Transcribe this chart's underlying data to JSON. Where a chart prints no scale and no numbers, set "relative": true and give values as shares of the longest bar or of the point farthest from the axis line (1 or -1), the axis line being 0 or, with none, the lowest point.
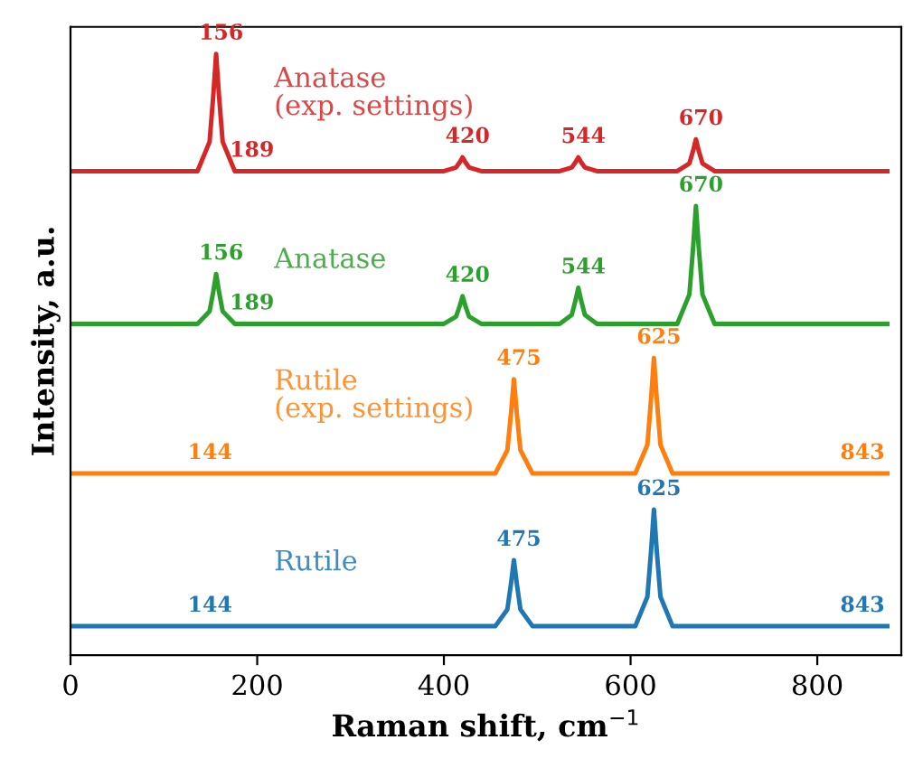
{
  "chart_data": {
    "type": "line",
    "relative": true,
    "xlabel": "Raman shift, cm$^{−1}$",
    "ylabel": "Intensity, a.u.",
    "xlim": [
      0,
      890
    ],
    "xticks": [
      0,
      200,
      400,
      600,
      800
    ],
    "grid": false,
    "legend": false,
    "marker": "none",
    "line_style": "solid",
    "series": [
      {
        "name": "Rutile",
        "color": "#1f77b4",
        "x": [
          0,
          455,
          468,
          472,
          475,
          478,
          482,
          495,
          605,
          618,
          622,
          625,
          628,
          632,
          645,
          875
        ],
        "values": [
          0.048,
          0.048,
          0.076,
          0.12,
          0.158,
          0.12,
          0.076,
          0.048,
          0.048,
          0.097,
          0.174,
          0.242,
          0.174,
          0.097,
          0.048,
          0.048
        ]
      },
      {
        "name": "Rutile\n(exp. settings)",
        "color": "#ff7f0e",
        "x": [
          0,
          455,
          468,
          472,
          475,
          478,
          482,
          495,
          605,
          618,
          622,
          625,
          628,
          632,
          645,
          875
        ],
        "values": [
          0.302,
          0.302,
          0.341,
          0.404,
          0.459,
          0.404,
          0.341,
          0.302,
          0.302,
          0.35,
          0.427,
          0.494,
          0.427,
          0.35,
          0.302,
          0.302
        ]
      },
      {
        "name": "Anatase",
        "color": "#2ca02c",
        "x": [
          0,
          136,
          149,
          153,
          156,
          159,
          163,
          176,
          400,
          413,
          417,
          420,
          423,
          427,
          440,
          524,
          537,
          541,
          544,
          547,
          551,
          564,
          650,
          663,
          667,
          670,
          673,
          677,
          690,
          875
        ],
        "values": [
          0.551,
          0.551,
          0.572,
          0.605,
          0.634,
          0.605,
          0.572,
          0.551,
          0.551,
          0.563,
          0.581,
          0.597,
          0.581,
          0.563,
          0.551,
          0.551,
          0.566,
          0.59,
          0.611,
          0.59,
          0.566,
          0.551,
          0.551,
          0.6,
          0.678,
          0.747,
          0.678,
          0.6,
          0.551,
          0.551
        ]
      },
      {
        "name": "Anatase\n(exp. settings)",
        "color": "#d62728",
        "x": [
          0,
          136,
          149,
          153,
          156,
          159,
          163,
          176,
          400,
          413,
          417,
          420,
          423,
          427,
          440,
          524,
          537,
          541,
          544,
          547,
          551,
          564,
          650,
          663,
          667,
          670,
          673,
          677,
          690,
          875
        ],
        "values": [
          0.805,
          0.805,
          0.854,
          0.932,
          1.0,
          0.932,
          0.854,
          0.805,
          0.805,
          0.811,
          0.82,
          0.828,
          0.82,
          0.811,
          0.805,
          0.805,
          0.811,
          0.82,
          0.828,
          0.82,
          0.811,
          0.805,
          0.805,
          0.818,
          0.839,
          0.858,
          0.839,
          0.818,
          0.805,
          0.805
        ]
      }
    ],
    "annotations": [
      {
        "text": "144",
        "x": 144,
        "y": 0.048
      },
      {
        "text": "475",
        "x": 475,
        "y": 0.158
      },
      {
        "text": "625",
        "x": 625,
        "y": 0.242
      },
      {
        "text": "843",
        "x": 843,
        "y": 0.048
      },
      {
        "text": "144",
        "x": 144,
        "y": 0.302
      },
      {
        "text": "475",
        "x": 475,
        "y": 0.459
      },
      {
        "text": "625",
        "x": 625,
        "y": 0.494
      },
      {
        "text": "843",
        "x": 843,
        "y": 0.302
      },
      {
        "text": "156",
        "x": 156,
        "y": 0.634
      },
      {
        "text": "189",
        "x": 189,
        "y": 0.551
      },
      {
        "text": "420",
        "x": 420,
        "y": 0.597
      },
      {
        "text": "544",
        "x": 544,
        "y": 0.611
      },
      {
        "text": "670",
        "x": 670,
        "y": 0.747
      },
      {
        "text": "156",
        "x": 156,
        "y": 1.0
      },
      {
        "text": "189",
        "x": 189,
        "y": 0.805
      },
      {
        "text": "420",
        "x": 420,
        "y": 0.828
      },
      {
        "text": "544",
        "x": 544,
        "y": 0.828
      },
      {
        "text": "670",
        "x": 670,
        "y": 0.858
      }
    ]
  }
}
